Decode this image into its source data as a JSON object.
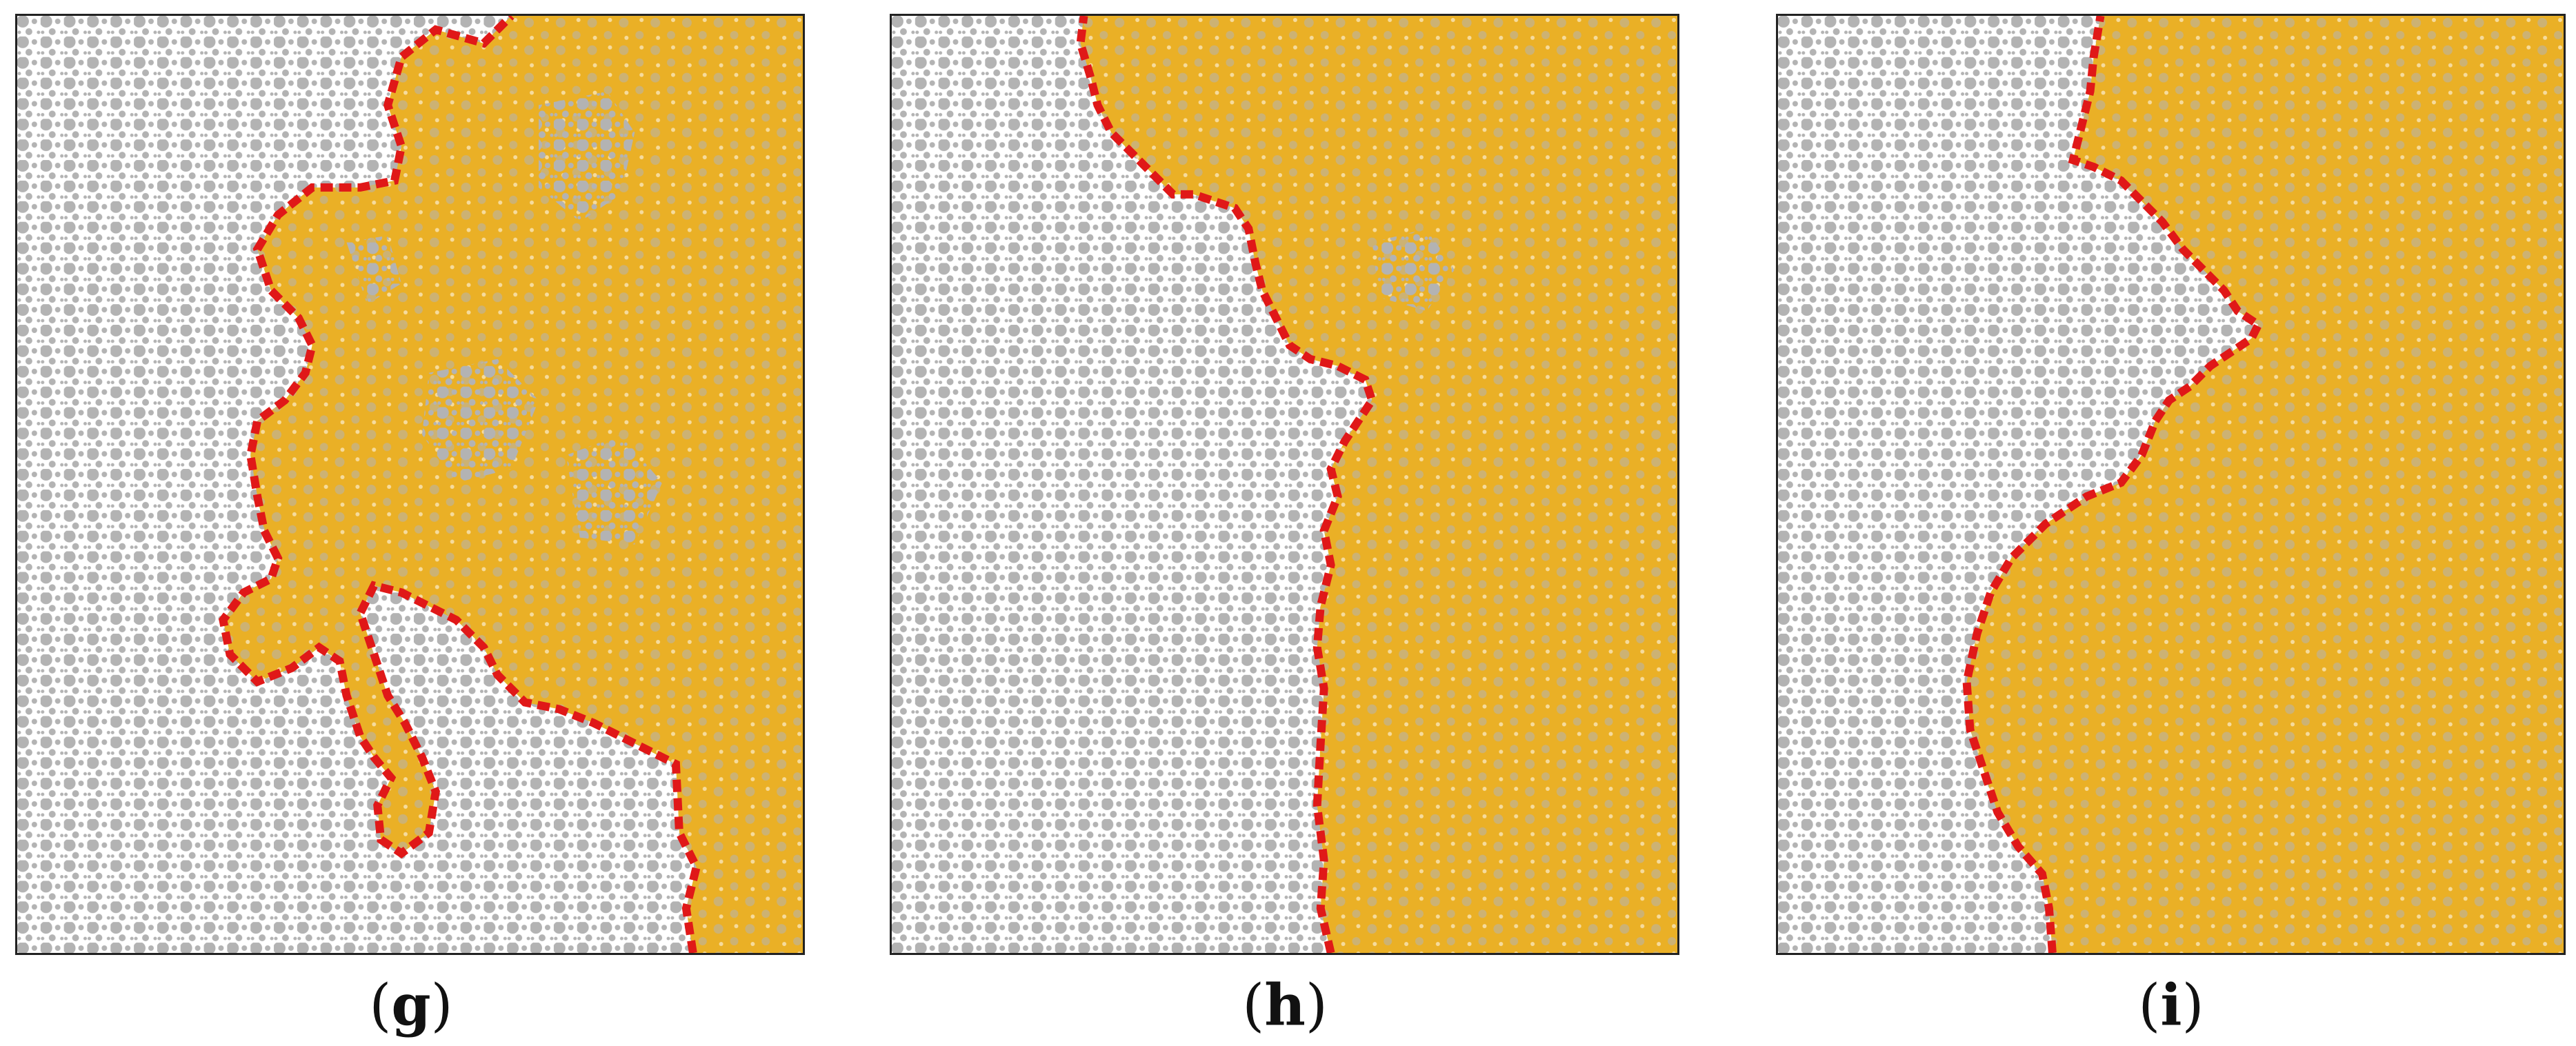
{
  "panels": [
    {
      "id": "g",
      "caption_letter": "g"
    },
    {
      "id": "h",
      "caption_letter": "h"
    },
    {
      "id": "i",
      "caption_letter": "i"
    }
  ],
  "colors": {
    "particle_gray": "#b3b3b3",
    "invaded_fill": "#eab026",
    "front_line": "#e01818",
    "frame": "#222222"
  }
}
